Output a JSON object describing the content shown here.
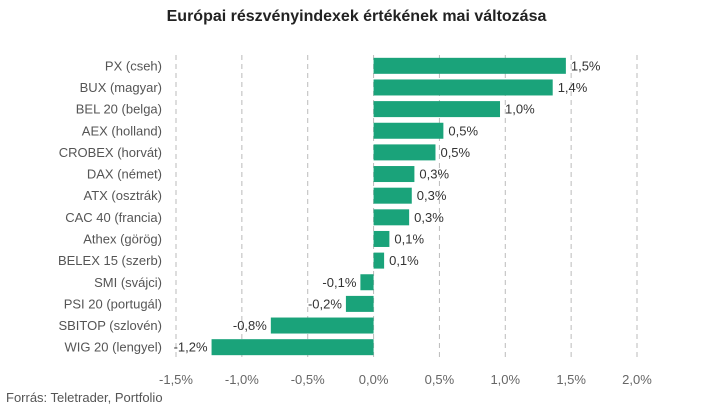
{
  "chart_data": {
    "type": "bar",
    "orientation": "horizontal",
    "title": "Európai részvényindexek értékének mai változása",
    "categories": [
      "PX (cseh)",
      "BUX (magyar)",
      "BEL 20 (belga)",
      "AEX (holland)",
      "CROBEX (horvát)",
      "DAX (német)",
      "ATX (osztrák)",
      "CAC 40 (francia)",
      "Athex (görög)",
      "BELEX 15 (szerb)",
      "SMI (svájci)",
      "PSI 20 (portugál)",
      "SBITOP (szlovén)",
      "WIG 20 (lengyel)"
    ],
    "values": [
      1.46,
      1.36,
      0.96,
      0.53,
      0.47,
      0.31,
      0.29,
      0.27,
      0.12,
      0.08,
      -0.1,
      -0.21,
      -0.78,
      -1.23
    ],
    "value_labels": [
      "1,5%",
      "1,4%",
      "1,0%",
      "0,5%",
      "0,5%",
      "0,3%",
      "0,3%",
      "0,3%",
      "0,1%",
      "0,1%",
      "-0,1%",
      "-0,2%",
      "-0,8%",
      "-1,2%"
    ],
    "xlim": [
      -1.5,
      2.0
    ],
    "xticks": [
      -1.5,
      -1.0,
      -0.5,
      0.0,
      0.5,
      1.0,
      1.5,
      2.0
    ],
    "xtick_labels": [
      "-1,5%",
      "-1,0%",
      "-0,5%",
      "0,0%",
      "0,5%",
      "1,0%",
      "1,5%",
      "2,0%"
    ],
    "grid": "vertical dashed",
    "bar_color": "#1aa37a",
    "xlabel": "",
    "ylabel": ""
  },
  "source": "Forrás: Teletrader, Portfolio"
}
